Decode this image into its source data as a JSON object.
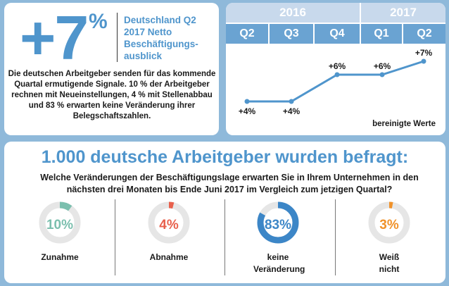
{
  "outlook": {
    "big_value": "+7",
    "big_sign": "%",
    "headline": "Deutschland Q2 2017 Netto Beschäftigungs-ausblick",
    "description": "Die deutschen Arbeitgeber senden für das kommende Quartal ermutigende Signale. 10 % der Arbeitgeber rechnen mit Neueinstellungen, 4 % mit Stellenabbau und 83 % erwarten keine Veränderung ihrer Belegschaftszahlen."
  },
  "colors": {
    "accent": "#4f95cc",
    "background": "#8fb9da",
    "year_header": "#c8d9ec",
    "q_header": "#6aa3d2",
    "increase": "#7bbfae",
    "decrease": "#e8604c",
    "no_change": "#3c86c7",
    "unknown": "#f0922a",
    "ring_bg": "#e6e6e6"
  },
  "chart_data": {
    "type": "line",
    "years": [
      "2016",
      "2017"
    ],
    "categories": [
      "Q2",
      "Q3",
      "Q4",
      "Q1",
      "Q2"
    ],
    "values": [
      4,
      4,
      6,
      6,
      7
    ],
    "labels": [
      "+4%",
      "+4%",
      "+6%",
      "+6%",
      "+7%"
    ],
    "note": "bereinigte Werte",
    "ylim": [
      3,
      8
    ]
  },
  "survey": {
    "title": "1.000 deutsche Arbeitgeber wurden befragt:",
    "question": "Welche Veränderungen der Beschäftigungslage erwarten Sie in Ihrem Unternehmen in den nächsten drei Monaten bis Ende Juni 2017 im Vergleich zum jetzigen Quartal?",
    "items": [
      {
        "value": 10,
        "label_pct": "10%",
        "label": "Zunahme",
        "color": "#7bbfae"
      },
      {
        "value": 4,
        "label_pct": "4%",
        "label": "Abnahme",
        "color": "#e8604c"
      },
      {
        "value": 83,
        "label_pct": "83%",
        "label": "keine Veränderung",
        "color": "#3c86c7"
      },
      {
        "value": 3,
        "label_pct": "3%",
        "label": "Weiß nicht",
        "color": "#f0922a"
      }
    ]
  }
}
